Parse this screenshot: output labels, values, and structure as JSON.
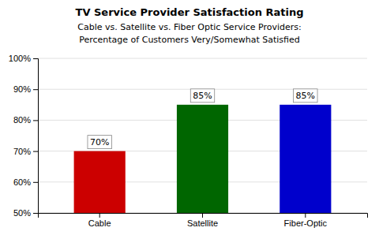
{
  "chart_data": {
    "type": "bar",
    "title": "TV Service Provider Satisfaction Rating",
    "subtitle": [
      "Cable vs. Satellite vs. Fiber Optic Service Providers:",
      "Percentage of Customers Very/Somewhat Satisfied"
    ],
    "categories": [
      "Cable",
      "Satellite",
      "Fiber-Optic"
    ],
    "values": [
      70,
      85,
      85
    ],
    "value_labels": [
      "70%",
      "85%",
      "85%"
    ],
    "data_labels": true,
    "colors": [
      "#cc0000",
      "#006600",
      "#0000cc"
    ],
    "ylim": [
      50,
      100
    ],
    "yticks": [
      {
        "value": 50,
        "label": "50%"
      },
      {
        "value": 60,
        "label": "60%"
      },
      {
        "value": 70,
        "label": "70%"
      },
      {
        "value": 80,
        "label": "80%"
      },
      {
        "value": 90,
        "label": "90%"
      },
      {
        "value": 100,
        "label": "100%"
      }
    ],
    "grid": true
  }
}
